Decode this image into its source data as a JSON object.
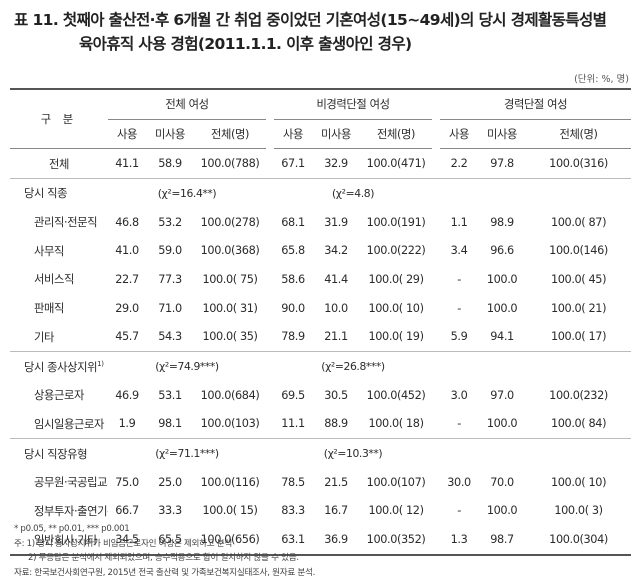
{
  "title": {
    "line1": "표 11. 첫째아 출산전·후 6개월 간 취업 중이었던 기혼여성(15~49세)의 당시 경제활동특성별",
    "line2": "육아휴직 사용 경험(2011.1.1. 이후 출생아인 경우)"
  },
  "unit": "(단위: %, 명)",
  "header": {
    "stub": "구 분",
    "groups": [
      "전체 여성",
      "비경력단절 여성",
      "경력단절 여성"
    ],
    "cols": [
      "사용",
      "미사용",
      "전체(명)"
    ]
  },
  "total_row": {
    "label": "전체",
    "values": [
      "41.1",
      "58.9",
      "100.0(788)",
      "67.1",
      "32.9",
      "100.0(471)",
      "2.2",
      "97.8",
      "100.0(316)"
    ]
  },
  "sections": [
    {
      "label": "당시 직종",
      "footnote": "",
      "chi": [
        "(χ²=16.4**)",
        "(χ²=4.8)",
        ""
      ],
      "rows": [
        {
          "label": "관리직·전문직",
          "values": [
            "46.8",
            "53.2",
            "100.0(278)",
            "68.1",
            "31.9",
            "100.0(191)",
            "1.1",
            "98.9",
            "100.0( 87)"
          ]
        },
        {
          "label": "사무직",
          "values": [
            "41.0",
            "59.0",
            "100.0(368)",
            "65.8",
            "34.2",
            "100.0(222)",
            "3.4",
            "96.6",
            "100.0(146)"
          ]
        },
        {
          "label": "서비스직",
          "values": [
            "22.7",
            "77.3",
            "100.0( 75)",
            "58.6",
            "41.4",
            "100.0( 29)",
            "-",
            "100.0",
            "100.0( 45)"
          ]
        },
        {
          "label": "판매직",
          "values": [
            "29.0",
            "71.0",
            "100.0( 31)",
            "90.0",
            "10.0",
            "100.0( 10)",
            "-",
            "100.0",
            "100.0( 21)"
          ]
        },
        {
          "label": "기타",
          "values": [
            "45.7",
            "54.3",
            "100.0( 35)",
            "78.9",
            "21.1",
            "100.0( 19)",
            "5.9",
            "94.1",
            "100.0( 17)"
          ]
        }
      ]
    },
    {
      "label": "당시 종사상지위",
      "footnote": "1)",
      "chi": [
        "(χ²=74.9***)",
        "(χ²=26.8***)",
        ""
      ],
      "rows": [
        {
          "label": "상용근로자",
          "values": [
            "46.9",
            "53.1",
            "100.0(684)",
            "69.5",
            "30.5",
            "100.0(452)",
            "3.0",
            "97.0",
            "100.0(232)"
          ]
        },
        {
          "label": "임시일용근로자",
          "values": [
            "1.9",
            "98.1",
            "100.0(103)",
            "11.1",
            "88.9",
            "100.0( 18)",
            "-",
            "100.0",
            "100.0( 84)"
          ]
        }
      ]
    },
    {
      "label": "당시 직장유형",
      "footnote": "",
      "chi": [
        "(χ²=71.1***)",
        "(χ²=10.3**)",
        ""
      ],
      "rows": [
        {
          "label": "공무원·국공립교사",
          "values": [
            "75.0",
            "25.0",
            "100.0(116)",
            "78.5",
            "21.5",
            "100.0(107)",
            "30.0",
            "70.0",
            "100.0( 10)"
          ]
        },
        {
          "label": "정부투자·출연기관",
          "values": [
            "66.7",
            "33.3",
            "100.0( 15)",
            "83.3",
            "16.7",
            "100.0( 12)",
            "-",
            "100.0",
            "100.0( 3)"
          ]
        },
        {
          "label": "일반회사·기타",
          "values": [
            "34.5",
            "65.5",
            "100.0(656)",
            "63.1",
            "36.9",
            "100.0(352)",
            "1.3",
            "98.7",
            "100.0(304)"
          ]
        }
      ]
    }
  ],
  "notes": [
    "* p0.05, ** p0.01, *** p0.001",
    "주: 1) 당시 종사상지위가 비임금근로자인 여성은 제외하고 분석",
    "2) 무응답은 분석에서 제외되었으며, 승수적용으로 합이 일치하지 않을 수 있음.",
    "자료: 한국보건사회연구원, 2015년 전국 출산력 및 가족보건복지실태조사, 원자료 분석."
  ]
}
